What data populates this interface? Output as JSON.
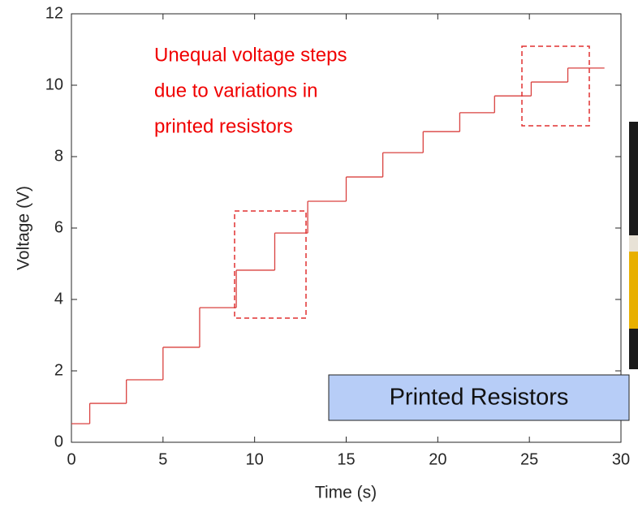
{
  "chart_data": {
    "type": "step",
    "x_label": "Time (s)",
    "y_label": "Voltage (V)",
    "annotations": [
      "Unequal voltage steps",
      "due to variations in",
      "printed resistors",
      "Printed Resistors"
    ],
    "x": [
      0,
      1,
      3,
      5,
      7,
      9,
      11.1,
      12.9,
      15,
      17,
      19.2,
      21.2,
      23.1,
      25.1,
      27.1,
      29.1
    ],
    "values": [
      0.52,
      1.09,
      1.75,
      2.66,
      3.77,
      4.82,
      5.86,
      6.75,
      7.43,
      8.11,
      8.7,
      9.23,
      9.7,
      10.09,
      10.48,
      10.48
    ],
    "color": "#d9413f",
    "xlim": [
      0,
      30
    ],
    "xticks": [
      0,
      5,
      10,
      15,
      20,
      25,
      30
    ],
    "ylim": [
      0,
      12
    ],
    "yticks": [
      0,
      2,
      4,
      6,
      8,
      10,
      12
    ]
  }
}
